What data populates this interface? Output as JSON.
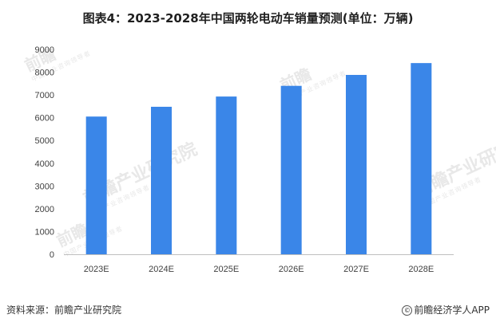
{
  "title": "图表4：2023-2028年中国两轮电动车销量预测(单位：万辆)",
  "footer": {
    "source": "资料来源：前瞻产业研究院",
    "credit": "前瞻经济学人APP",
    "copyright_symbol": "©"
  },
  "watermark": {
    "brand": "前瞻",
    "institute": "前瞻产业研究院",
    "tagline": "中国产业咨询领导者"
  },
  "chart_data": {
    "type": "bar",
    "categories": [
      "2023E",
      "2024E",
      "2025E",
      "2026E",
      "2027E",
      "2028E"
    ],
    "values": [
      6050,
      6480,
      6930,
      7400,
      7880,
      8400
    ],
    "ylim": [
      0,
      9000
    ],
    "yticks": [
      0,
      1000,
      2000,
      3000,
      4000,
      5000,
      6000,
      7000,
      8000,
      9000
    ],
    "bar_color": "#3a86e8",
    "grid": false,
    "legend": "none"
  }
}
